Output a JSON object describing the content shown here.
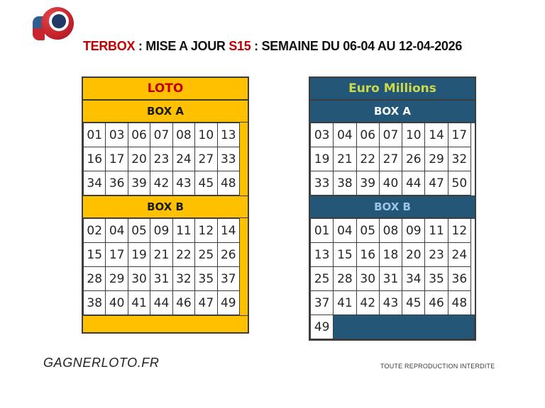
{
  "header": {
    "title_segments": [
      {
        "text": "TERBOX",
        "color": "#c00000"
      },
      {
        "text": " : MISE A JOUR ",
        "color": "#111111"
      },
      {
        "text": "S15",
        "color": "#c00000"
      },
      {
        "text": " : SEMAINE DU 06-04 AU 12-04-2026",
        "color": "#111111"
      }
    ]
  },
  "footer": {
    "site": "GAGNERLOTO.FR",
    "notice": "TOUTE REPRODUCTION INTERDITE"
  },
  "logo": {
    "name": "gagnerloto-logo",
    "roundel_red": "#c8242e",
    "roundel_navy": "#1f3864",
    "accent_blue": "#2e5f93"
  },
  "tables": [
    {
      "id": "loto",
      "title": "LOTO",
      "style": {
        "bg": "#ffc000",
        "title_color": "#c00000",
        "filler_bg": "#ffc000",
        "filler_width": 11
      },
      "sections": [
        {
          "label": "BOX A",
          "label_color": "#1a1a1a",
          "rows": [
            [
              "01",
              "03",
              "06",
              "07",
              "08",
              "10",
              "13"
            ],
            [
              "16",
              "17",
              "20",
              "23",
              "24",
              "27",
              "33"
            ],
            [
              "34",
              "36",
              "39",
              "42",
              "43",
              "45",
              "48"
            ]
          ]
        },
        {
          "label": "BOX B",
          "label_color": "#1a1a1a",
          "rows": [
            [
              "02",
              "04",
              "05",
              "09",
              "11",
              "12",
              "14"
            ],
            [
              "15",
              "17",
              "19",
              "21",
              "22",
              "25",
              "26"
            ],
            [
              "28",
              "29",
              "30",
              "31",
              "32",
              "35",
              "37"
            ],
            [
              "38",
              "40",
              "41",
              "44",
              "46",
              "47",
              "49"
            ]
          ]
        }
      ],
      "footer_band": true
    },
    {
      "id": "euromillions",
      "title": "Euro Millions",
      "style": {
        "bg": "#235677",
        "title_color": "#ccd94a",
        "filler_bg": "#ffffff",
        "filler_width": 5
      },
      "sections": [
        {
          "label": "BOX A",
          "label_color": "#f5f9fd",
          "rows": [
            [
              "03",
              "04",
              "06",
              "07",
              "10",
              "14",
              "17"
            ],
            [
              "19",
              "21",
              "22",
              "27",
              "26",
              "29",
              "32"
            ],
            [
              "33",
              "38",
              "39",
              "40",
              "44",
              "47",
              "50"
            ]
          ]
        },
        {
          "label": "BOX B",
          "label_color": "#9dc3e6",
          "rows": [
            [
              "01",
              "04",
              "05",
              "08",
              "09",
              "11",
              "12"
            ],
            [
              "13",
              "15",
              "16",
              "18",
              "20",
              "23",
              "24"
            ],
            [
              "25",
              "28",
              "30",
              "31",
              "34",
              "35",
              "36"
            ],
            [
              "37",
              "41",
              "42",
              "43",
              "45",
              "46",
              "48"
            ],
            [
              "49"
            ]
          ]
        }
      ],
      "footer_band": false
    }
  ]
}
